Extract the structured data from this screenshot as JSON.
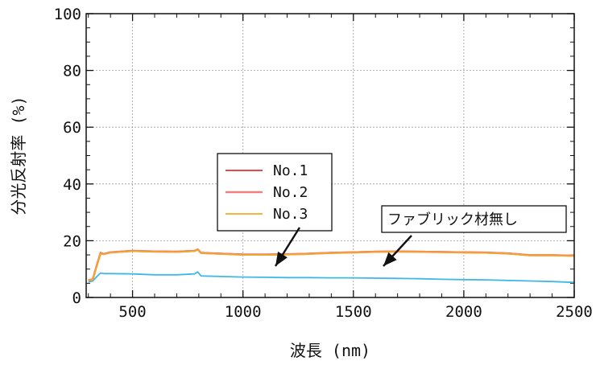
{
  "chart_data": {
    "type": "line",
    "xlabel": "波長 (nm)",
    "ylabel": "分光反射率 (%)",
    "xlim": [
      290,
      2500
    ],
    "ylim": [
      0,
      100
    ],
    "xticks": [
      500,
      1000,
      1500,
      2000,
      2500
    ],
    "yticks": [
      0,
      20,
      40,
      60,
      80,
      100
    ],
    "grid": true,
    "legend_position": "center-left",
    "series": [
      {
        "name": "No.1",
        "color": "#e03030",
        "x": [
          300,
          320,
          340,
          355,
          370,
          400,
          500,
          600,
          700,
          780,
          795,
          810,
          900,
          1000,
          1100,
          1200,
          1300,
          1400,
          1500,
          1600,
          1700,
          1800,
          1900,
          2000,
          2100,
          2200,
          2300,
          2400,
          2500
        ],
        "y": [
          6.2,
          6.5,
          12.0,
          15.8,
          15.4,
          16.0,
          16.5,
          16.3,
          16.2,
          16.5,
          17.0,
          15.8,
          15.5,
          15.2,
          15.2,
          15.3,
          15.5,
          15.8,
          16.0,
          16.2,
          16.3,
          16.2,
          16.1,
          16.0,
          15.9,
          15.6,
          15.0,
          15.0,
          14.8
        ]
      },
      {
        "name": "No.2",
        "color": "#f08080",
        "x": [
          300,
          320,
          340,
          355,
          370,
          400,
          500,
          600,
          700,
          780,
          795,
          810,
          900,
          1000,
          1100,
          1200,
          1300,
          1400,
          1500,
          1600,
          1700,
          1800,
          1900,
          2000,
          2100,
          2200,
          2300,
          2400,
          2500
        ],
        "y": [
          6.1,
          6.4,
          11.8,
          15.6,
          15.3,
          15.9,
          16.4,
          16.2,
          16.1,
          16.4,
          16.9,
          15.7,
          15.4,
          15.1,
          15.1,
          15.2,
          15.4,
          15.7,
          15.9,
          16.1,
          16.2,
          16.1,
          16.0,
          15.9,
          15.8,
          15.5,
          14.9,
          14.9,
          14.7
        ]
      },
      {
        "name": "No.3",
        "color": "#f5a623",
        "x": [
          300,
          320,
          340,
          355,
          370,
          400,
          500,
          600,
          700,
          780,
          795,
          810,
          900,
          1000,
          1100,
          1200,
          1300,
          1400,
          1500,
          1600,
          1700,
          1800,
          1900,
          2000,
          2100,
          2200,
          2300,
          2400,
          2500
        ],
        "y": [
          6.0,
          6.3,
          11.6,
          15.4,
          15.2,
          15.8,
          16.3,
          16.1,
          16.0,
          16.3,
          16.8,
          15.6,
          15.3,
          15.0,
          15.0,
          15.1,
          15.3,
          15.6,
          15.8,
          16.0,
          16.1,
          16.0,
          15.9,
          15.8,
          15.7,
          15.4,
          14.8,
          14.8,
          14.6
        ]
      },
      {
        "name": "",
        "color": "#3fb8e8",
        "x": [
          300,
          320,
          340,
          355,
          370,
          400,
          500,
          600,
          700,
          780,
          795,
          810,
          900,
          1000,
          1100,
          1200,
          1300,
          1400,
          1500,
          1600,
          1700,
          1800,
          1900,
          2000,
          2100,
          2200,
          2300,
          2400,
          2500
        ],
        "y": [
          5.5,
          5.8,
          7.5,
          8.6,
          8.4,
          8.4,
          8.3,
          8.0,
          8.0,
          8.3,
          9.0,
          7.6,
          7.4,
          7.2,
          7.1,
          7.0,
          7.0,
          6.9,
          6.9,
          6.8,
          6.7,
          6.6,
          6.4,
          6.3,
          6.2,
          6.0,
          5.8,
          5.6,
          5.3
        ]
      }
    ],
    "annotations": {
      "fabric_label": "ファブリック材無し"
    }
  }
}
